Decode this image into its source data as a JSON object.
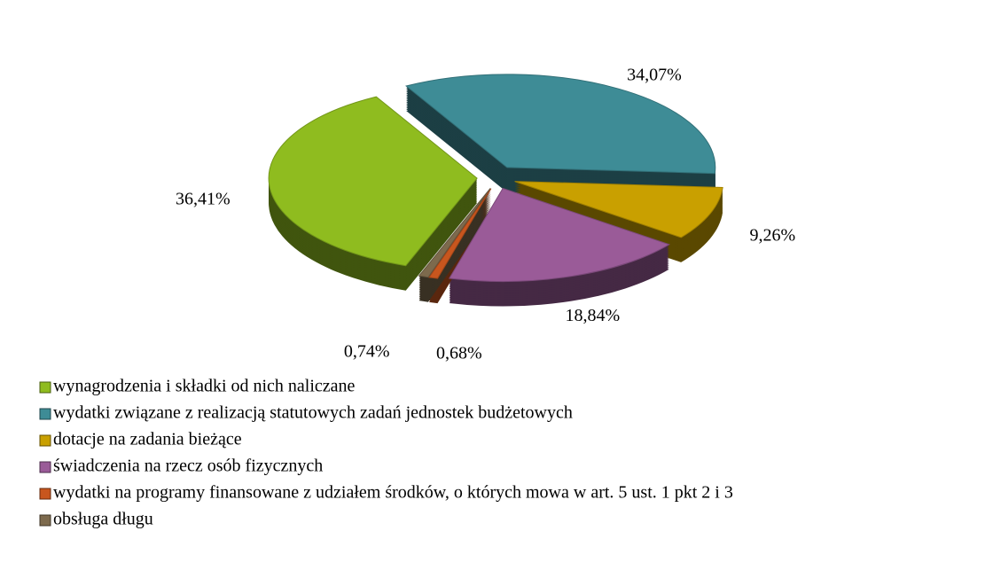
{
  "chart_data": {
    "type": "pie",
    "categories": [
      "wynagrodzenia i składki od nich naliczane",
      "wydatki związane z realizacją statutowych zadań jednostek budżetowych",
      "dotacje na zadania bieżące",
      "świadczenia na rzecz osób fizycznych",
      "wydatki na programy finansowane z udziałem środków, o których mowa w art. 5 ust. 1 pkt 2 i 3",
      "obsługa długu"
    ],
    "values": [
      36.41,
      34.07,
      9.26,
      18.84,
      0.68,
      0.74
    ],
    "value_labels": [
      "36,41%",
      "34,07%",
      "9,26%",
      "18,84%",
      "0,68%",
      "0,74%"
    ],
    "colors": [
      "#8fbc1f",
      "#3e8c96",
      "#c9a000",
      "#9a5b98",
      "#c8561e",
      "#7d6a4d"
    ],
    "legend": "bottom"
  }
}
